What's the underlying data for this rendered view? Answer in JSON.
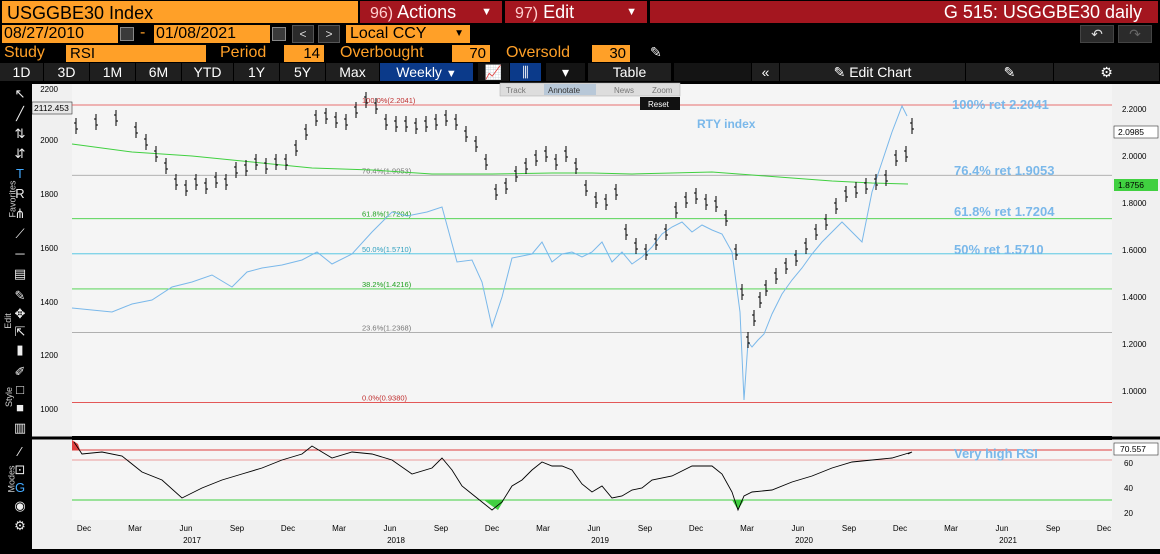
{
  "header": {
    "ticker": "USGGBE30 Index",
    "actions_num": "96)",
    "actions_label": "Actions",
    "edit_num": "97)",
    "edit_label": "Edit",
    "title": "G 515: USGGBE30 daily"
  },
  "range": {
    "start": "08/27/2010",
    "sep": "-",
    "end": "01/08/2021",
    "currency": "Local CCY"
  },
  "study": {
    "study_label": "Study",
    "study_value": "RSI",
    "period_label": "Period",
    "period_value": "14",
    "overbought_label": "Overbought",
    "overbought_value": "70",
    "oversold_label": "Oversold",
    "oversold_value": "30"
  },
  "tabs": {
    "periods": [
      "1D",
      "3D",
      "1M",
      "6M",
      "YTD",
      "1Y",
      "5Y",
      "Max"
    ],
    "frequency": "Weekly",
    "table": "Table",
    "edit_chart": "Edit Chart"
  },
  "toolbar_labels": {
    "favorites": "Favorites",
    "edit": "Edit",
    "style": "Style",
    "modes": "Modes"
  },
  "chart_overlay": {
    "track": "Track",
    "annotate": "Annotate",
    "news": "News",
    "zoom": "Zoom",
    "reset": "Reset"
  },
  "colors": {
    "orange": "#ffa028",
    "red": "#a4161f",
    "blue_tab": "#0b3a8a",
    "rty": "#7ab8ea",
    "ma": "#40d040",
    "fib_red": "#e04040"
  },
  "chart_data": {
    "type": "line",
    "main": {
      "left_axis_ticks": [
        "2200",
        "2000",
        "1800",
        "1600",
        "1400",
        "1200",
        "1000"
      ],
      "right_axis_ticks": [
        "2.2000",
        "2.0000",
        "1.8000",
        "1.6000",
        "1.4000",
        "1.2000",
        "1.0000"
      ],
      "left_last": "2112.453",
      "right_last_price": "2.0985",
      "right_last_ma": "1.8756",
      "series_label": "RTY index",
      "fib_levels": [
        {
          "label": "100.0%(2.2041)",
          "value": 2.2041,
          "note": "100% ret 2.2041"
        },
        {
          "label": "76.4%(1.9053)",
          "value": 1.9053,
          "note": "76.4% ret 1.9053"
        },
        {
          "label": "61.8%(1.7204)",
          "value": 1.7204,
          "note": "61.8% ret 1.7204"
        },
        {
          "label": "50.0%(1.5710)",
          "value": 1.571,
          "note": "50% ret 1.5710"
        },
        {
          "label": "38.2%(1.4216)",
          "value": 1.4216,
          "note": ""
        },
        {
          "label": "23.6%(1.2368)",
          "value": 1.2368,
          "note": ""
        },
        {
          "label": "0.0%(0.9380)",
          "value": 0.938,
          "note": ""
        }
      ]
    },
    "rsi": {
      "ticks": [
        "60",
        "40",
        "20"
      ],
      "last": "70.557",
      "overbought": 70,
      "oversold": 30,
      "note": "Very high RSI"
    },
    "x_months": [
      "Dec",
      "Mar",
      "Jun",
      "Sep",
      "Dec",
      "Mar",
      "Jun",
      "Sep",
      "Dec",
      "Mar",
      "Jun",
      "Sep",
      "Dec",
      "Mar",
      "Jun",
      "Sep",
      "Dec",
      "Mar",
      "Jun",
      "Sep",
      "Dec"
    ],
    "x_years": [
      "2017",
      "2018",
      "2019",
      "2020",
      "2021"
    ]
  }
}
